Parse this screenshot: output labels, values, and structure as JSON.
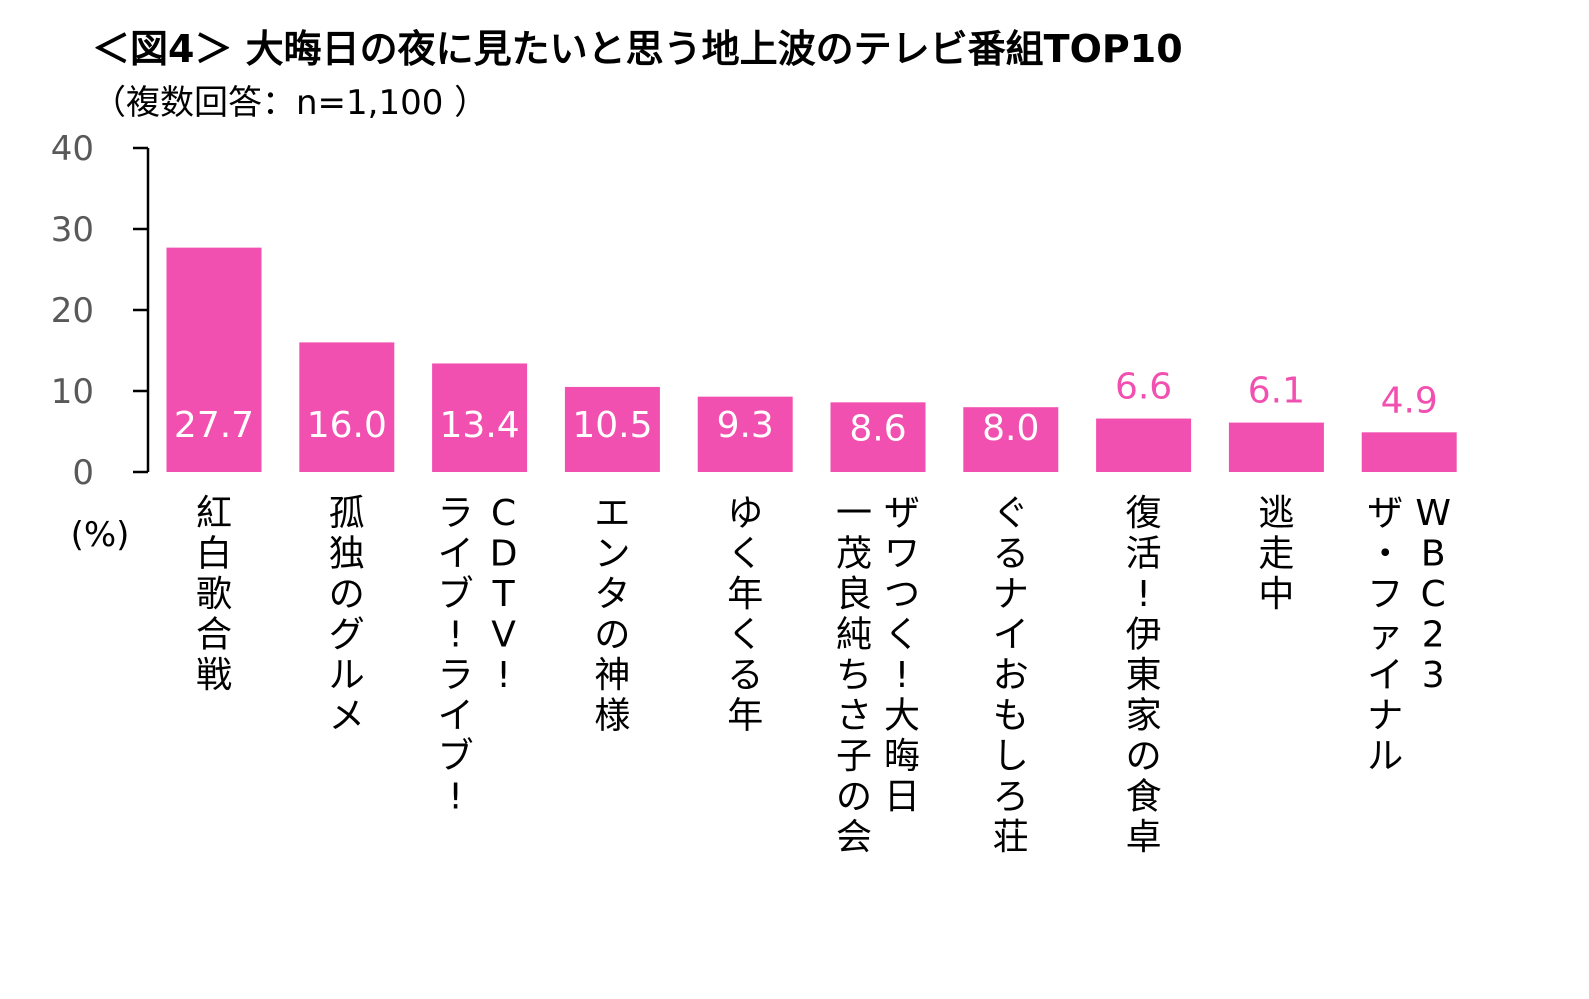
{
  "chart_data": {
    "type": "bar",
    "title": "＜図4＞ 大晦日の夜に見たいと思う地上波のテレビ番組TOP10",
    "subtitle": "（複数回答：n=1,100 ）",
    "ylabel": "(%)",
    "ylim": [
      0,
      40
    ],
    "yticks": [
      0,
      10,
      20,
      30,
      40
    ],
    "bar_color": "#f250b0",
    "label_inside_color": "#ffffff",
    "label_outside_color": "#f250b0",
    "categories": [
      {
        "name": "紅白歌合戦",
        "columns": [
          "紅白歌合戦"
        ]
      },
      {
        "name": "孤独のグルメ",
        "columns": [
          "孤独のグルメ"
        ]
      },
      {
        "name": "CDTV!ライブ!ライブ!",
        "columns": [
          "CDTV!",
          "ライブ!ライブ!"
        ]
      },
      {
        "name": "エンタの神様",
        "columns": [
          "エンタの神様"
        ]
      },
      {
        "name": "ゆく年くる年",
        "columns": [
          "ゆく年くる年"
        ]
      },
      {
        "name": "ザワつく!大晦日 一茂良純ちさ子の会",
        "columns": [
          "ザワつく!大晦日",
          "一茂良純ちさ子の会"
        ]
      },
      {
        "name": "ぐるナイおもしろ荘",
        "columns": [
          "ぐるナイおもしろ荘"
        ]
      },
      {
        "name": "復活!伊東家の食卓",
        "columns": [
          "復活!伊東家の食卓"
        ]
      },
      {
        "name": "逃走中",
        "columns": [
          "逃走中"
        ]
      },
      {
        "name": "WBC23 ザ・ファイナル",
        "columns": [
          "WBC23",
          "ザ・ファイナル"
        ]
      }
    ],
    "values": [
      27.7,
      16.0,
      13.4,
      10.5,
      9.3,
      8.6,
      8.0,
      6.6,
      6.1,
      4.9
    ],
    "value_labels": [
      "27.7",
      "16.0",
      "13.4",
      "10.5",
      "9.3",
      "8.6",
      "8.0",
      "6.6",
      "6.1",
      "4.9"
    ],
    "label_position": [
      "inside",
      "inside",
      "inside",
      "inside",
      "inside",
      "inside",
      "inside",
      "outside",
      "outside",
      "outside"
    ]
  }
}
